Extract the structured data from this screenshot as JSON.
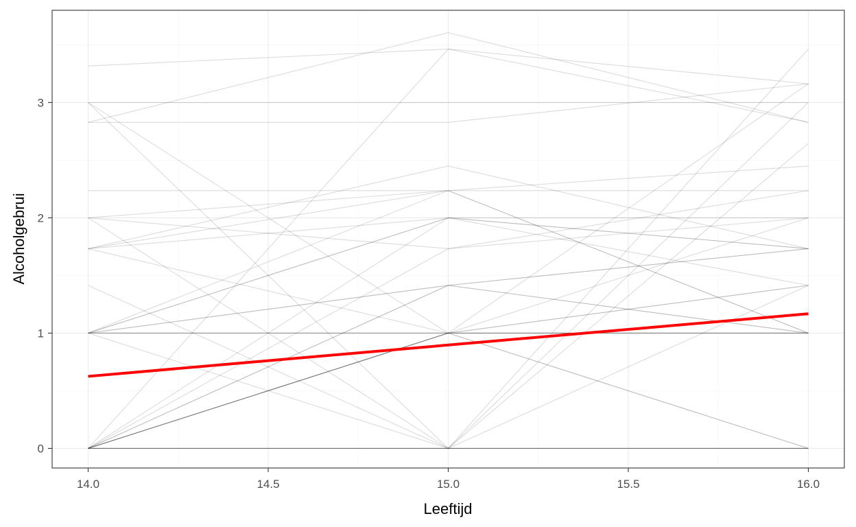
{
  "chart_data": {
    "type": "line",
    "title": "",
    "xlabel": "Leeftijd",
    "ylabel": "Alcoholgebrui",
    "xlim": [
      13.9,
      16.1
    ],
    "ylim": [
      -0.17,
      3.8
    ],
    "x_ticks": [
      14.0,
      14.5,
      15.0,
      15.5,
      16.0
    ],
    "x_tick_labels": [
      "14.0",
      "14.5",
      "15.0",
      "15.5",
      "16.0"
    ],
    "y_ticks": [
      0,
      1,
      2,
      3
    ],
    "y_tick_labels": [
      "0",
      "1",
      "2",
      "3"
    ],
    "grid": true,
    "legend": "none",
    "x": [
      14,
      15,
      16
    ],
    "series": [
      {
        "values": [
          0,
          0,
          0
        ]
      },
      {
        "values": [
          0,
          0,
          0
        ]
      },
      {
        "values": [
          0,
          0,
          0
        ]
      },
      {
        "values": [
          0,
          0,
          0
        ]
      },
      {
        "values": [
          0,
          0,
          0
        ]
      },
      {
        "values": [
          0,
          1,
          0
        ]
      },
      {
        "values": [
          0,
          1,
          0
        ]
      },
      {
        "values": [
          0,
          1,
          1
        ]
      },
      {
        "values": [
          0,
          1,
          1
        ]
      },
      {
        "values": [
          0,
          1,
          1.414
        ]
      },
      {
        "values": [
          0,
          1.414,
          1
        ]
      },
      {
        "values": [
          0,
          1.414,
          1.732
        ]
      },
      {
        "values": [
          0,
          1.732,
          2
        ]
      },
      {
        "values": [
          0,
          2,
          1.732
        ]
      },
      {
        "values": [
          0,
          3.464,
          2.828
        ]
      },
      {
        "values": [
          1,
          1,
          1
        ]
      },
      {
        "values": [
          1,
          1,
          1
        ]
      },
      {
        "values": [
          1,
          1,
          1.414
        ]
      },
      {
        "values": [
          1,
          1.414,
          1
        ]
      },
      {
        "values": [
          1,
          1.414,
          1.732
        ]
      },
      {
        "values": [
          1,
          2,
          2
        ]
      },
      {
        "values": [
          1,
          2,
          1.732
        ]
      },
      {
        "values": [
          1,
          2.236,
          1
        ]
      },
      {
        "values": [
          1,
          0,
          1.414
        ]
      },
      {
        "values": [
          1.414,
          0,
          2.646
        ]
      },
      {
        "values": [
          1.732,
          1,
          2
        ]
      },
      {
        "values": [
          1.732,
          2.449,
          1.732
        ]
      },
      {
        "values": [
          1.732,
          2.236,
          2.449
        ]
      },
      {
        "values": [
          1.732,
          2,
          1.414
        ]
      },
      {
        "values": [
          2,
          0,
          3
        ]
      },
      {
        "values": [
          2,
          1.732,
          2.236
        ]
      },
      {
        "values": [
          2,
          2.236,
          1
        ]
      },
      {
        "values": [
          2.236,
          2.236,
          2.236
        ]
      },
      {
        "values": [
          2.828,
          3.606,
          2.828
        ]
      },
      {
        "values": [
          3,
          3,
          3
        ]
      },
      {
        "values": [
          3,
          1,
          3.162
        ]
      },
      {
        "values": [
          3,
          0,
          3.464
        ]
      },
      {
        "values": [
          3.317,
          3.464,
          3.162
        ]
      },
      {
        "values": [
          2.828,
          2.828,
          3.162
        ]
      }
    ],
    "trend_line": {
      "x": [
        14,
        16
      ],
      "values": [
        0.625,
        1.168
      ],
      "color": "#ff0000"
    },
    "colors": {
      "individual_line": "#000000",
      "trend": "#ff0000",
      "grid_major": "#ebebeb",
      "grid_minor": "#f5f5f5",
      "panel_border": "#333333"
    }
  }
}
